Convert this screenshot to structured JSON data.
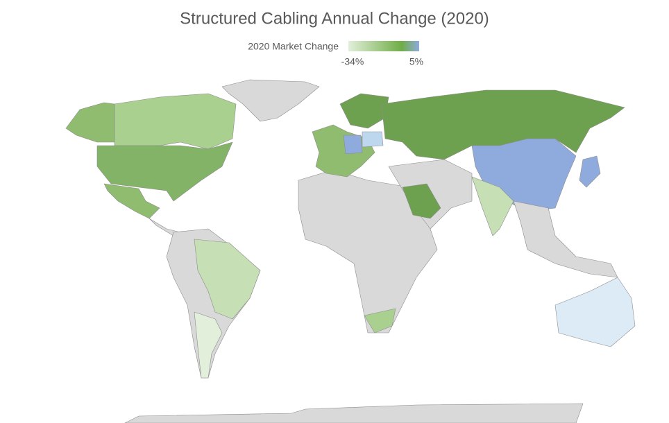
{
  "chart_data": {
    "type": "map",
    "title": "Structured Cabling Annual Change (2020)",
    "legend": {
      "title": "2020 Market Change",
      "range": [
        -34,
        5
      ],
      "ticks": [
        {
          "value": -34,
          "label": "-34%"
        },
        {
          "value": 5,
          "label": "5%"
        }
      ],
      "colors": [
        "#e2efda",
        "#70ad47",
        "#8faadc"
      ]
    }
  }
}
